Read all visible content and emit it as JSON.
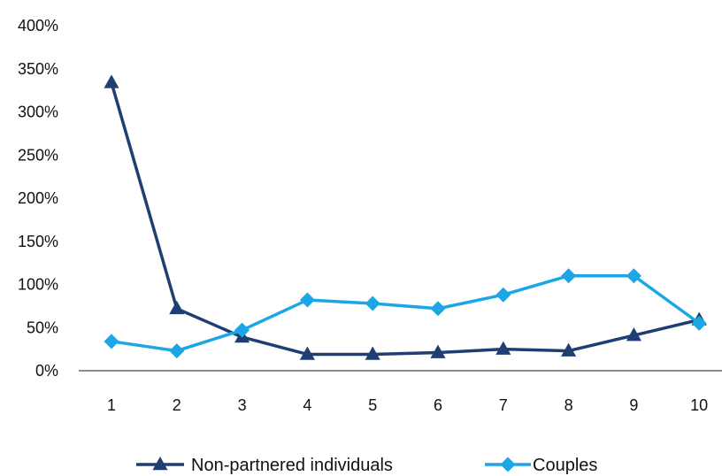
{
  "chart_data": {
    "type": "line",
    "title": "",
    "xlabel": "",
    "ylabel": "",
    "categories": [
      "1",
      "2",
      "3",
      "4",
      "5",
      "6",
      "7",
      "8",
      "9",
      "10"
    ],
    "ylim": [
      0,
      400
    ],
    "yticks": [
      0,
      50,
      100,
      150,
      200,
      250,
      300,
      350,
      400
    ],
    "ytick_labels": [
      "0%",
      "50%",
      "100%",
      "150%",
      "200%",
      "250%",
      "300%",
      "350%",
      "400%"
    ],
    "grid": false,
    "legend_position": "bottom",
    "series": [
      {
        "name": "Non-partnered individuals",
        "color": "#1F3F73",
        "marker": "triangle",
        "values": [
          334,
          72,
          39,
          19,
          19,
          21,
          25,
          23,
          41,
          59
        ]
      },
      {
        "name": "Couples",
        "color": "#1BA6E6",
        "marker": "diamond",
        "values": [
          34,
          23,
          47,
          82,
          78,
          72,
          88,
          110,
          110,
          55
        ]
      }
    ]
  }
}
